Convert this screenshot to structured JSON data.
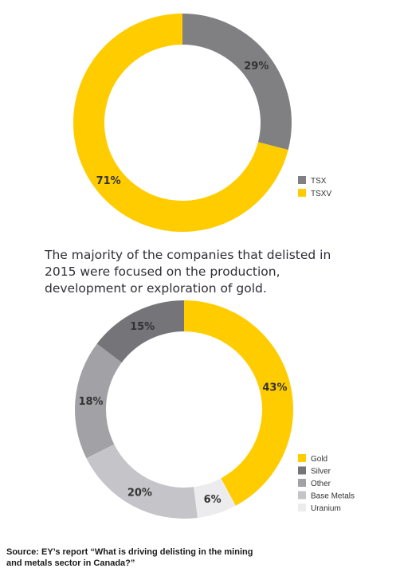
{
  "chart_data": [
    {
      "type": "pie",
      "title": "",
      "donut": true,
      "legend_position": "bottom-right",
      "slices": [
        {
          "label": "TSX",
          "value": 29,
          "display": "29%",
          "color": "#808083"
        },
        {
          "label": "TSXV",
          "value": 71,
          "display": "71%",
          "color": "#ffcc00"
        }
      ]
    },
    {
      "type": "pie",
      "title": "",
      "donut": true,
      "legend_position": "bottom-right",
      "slices": [
        {
          "label": "Gold",
          "value": 43,
          "display": "43%",
          "color": "#ffcc00"
        },
        {
          "label": "Uranium",
          "value": 6,
          "display": "6%",
          "color": "#ececee"
        },
        {
          "label": "Base Metals",
          "value": 20,
          "display": "20%",
          "color": "#c4c4c9"
        },
        {
          "label": "Other",
          "value": 18,
          "display": "18%",
          "color": "#a1a1a6"
        },
        {
          "label": "Silver",
          "value": 15,
          "display": "15%",
          "color": "#747479"
        }
      ],
      "legend_order": [
        "Gold",
        "Silver",
        "Other",
        "Base Metals",
        "Uranium"
      ]
    }
  ],
  "caption": "The majority of the companies that delisted in 2015 were focused on the production, development or exploration of gold.",
  "source": "Source: EY’s report “What is driving delisting in the mining and metals sector in Canada?”"
}
